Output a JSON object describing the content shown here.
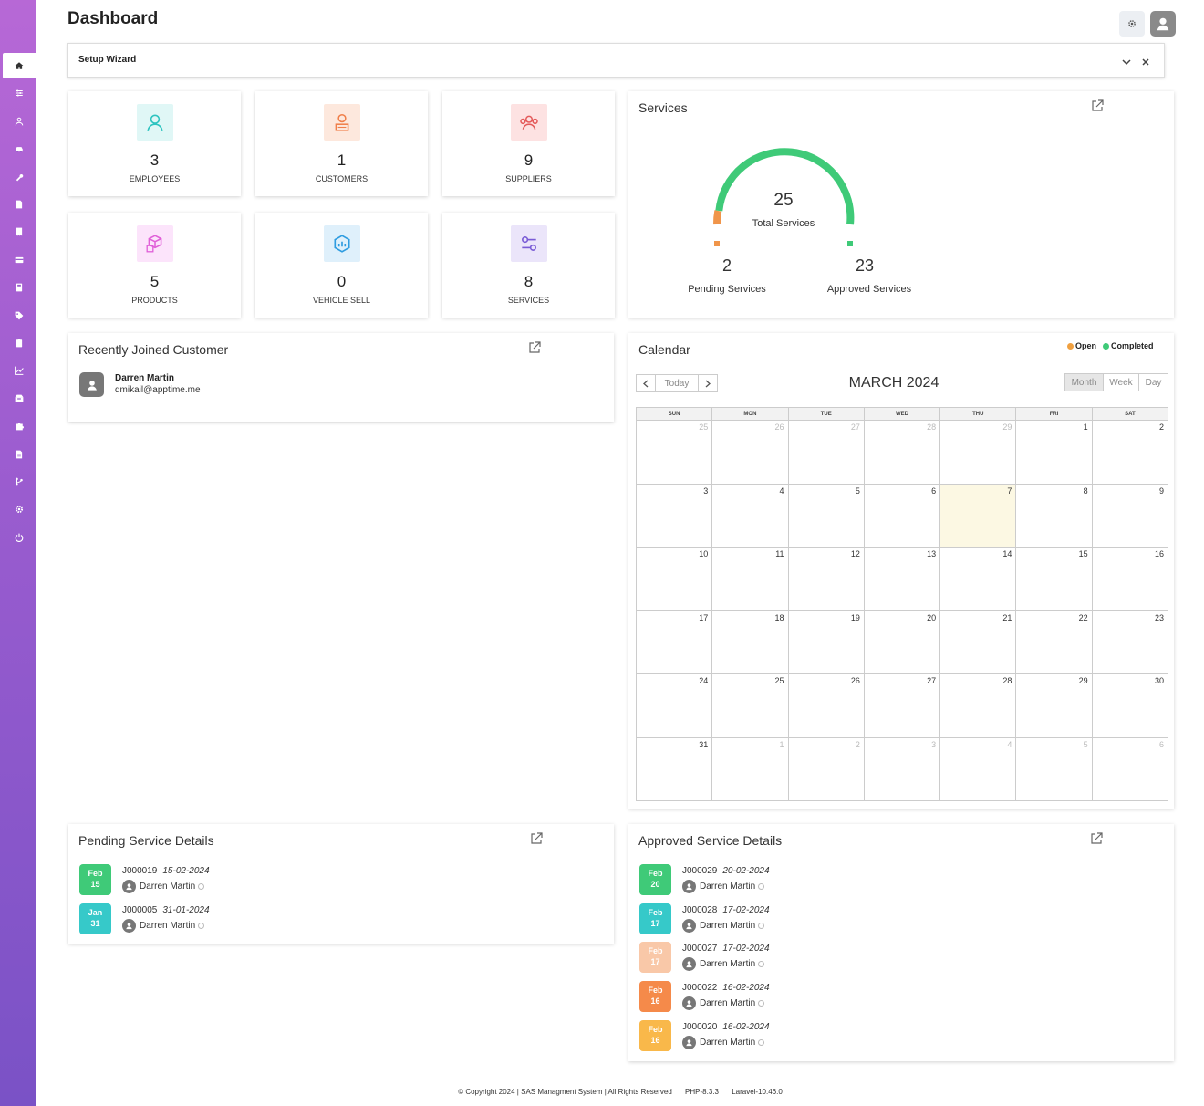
{
  "header": {
    "title": "Dashboard"
  },
  "sidebar": {
    "items": [
      {
        "icon": "home-icon"
      },
      {
        "icon": "sliders-icon"
      },
      {
        "icon": "user-icon"
      },
      {
        "icon": "car-icon"
      },
      {
        "icon": "wrench-icon"
      },
      {
        "icon": "document-icon"
      },
      {
        "icon": "receipt-icon"
      },
      {
        "icon": "card-icon"
      },
      {
        "icon": "calculator-icon"
      },
      {
        "icon": "tag-icon"
      },
      {
        "icon": "clipboard-icon"
      },
      {
        "icon": "chart-line-icon"
      },
      {
        "icon": "inbox-icon"
      },
      {
        "icon": "puzzle-icon"
      },
      {
        "icon": "file-icon"
      },
      {
        "icon": "branch-icon"
      },
      {
        "icon": "gear-icon"
      },
      {
        "icon": "power-icon"
      }
    ]
  },
  "wizard": {
    "title": "Setup Wizard"
  },
  "stats": [
    {
      "value": "3",
      "label": "EMPLOYEES",
      "color": "#2ec4c0",
      "bg": "#e0f7f6"
    },
    {
      "value": "1",
      "label": "CUSTOMERS",
      "color": "#f07f4a",
      "bg": "#fde8dd"
    },
    {
      "value": "9",
      "label": "SUPPLIERS",
      "color": "#e45a5a",
      "bg": "#fde2e2"
    },
    {
      "value": "5",
      "label": "PRODUCTS",
      "color": "#e060d8",
      "bg": "#fce4fb"
    },
    {
      "value": "0",
      "label": "VEHICLE SELL",
      "color": "#2e9ce0",
      "bg": "#dff0fb"
    },
    {
      "value": "8",
      "label": "SERVICES",
      "color": "#7a5cd6",
      "bg": "#ebe5fa"
    }
  ],
  "services": {
    "title": "Services",
    "total": "25",
    "total_label": "Total Services",
    "pending": "2",
    "pending_label": "Pending Services",
    "approved": "23",
    "approved_label": "Approved Services",
    "pending_color": "#f0954a",
    "approved_color": "#3fca78"
  },
  "recent_customer": {
    "title": "Recently Joined Customer",
    "name": "Darren Martin",
    "email": "dmikail@apptime.me"
  },
  "calendar": {
    "title": "Calendar",
    "legend_open": "Open",
    "legend_completed": "Completed",
    "open_color": "#f0a040",
    "completed_color": "#3fca78",
    "today_btn": "Today",
    "month_label": "MARCH 2024",
    "view_month": "Month",
    "view_week": "Week",
    "view_day": "Day",
    "days": [
      "SUN",
      "MON",
      "TUE",
      "WED",
      "THU",
      "FRI",
      "SAT"
    ],
    "weeks": [
      [
        "25",
        "26",
        "27",
        "28",
        "29",
        "1",
        "2"
      ],
      [
        "3",
        "4",
        "5",
        "6",
        "7",
        "8",
        "9"
      ],
      [
        "10",
        "11",
        "12",
        "13",
        "14",
        "15",
        "16"
      ],
      [
        "17",
        "18",
        "19",
        "20",
        "21",
        "22",
        "23"
      ],
      [
        "24",
        "25",
        "26",
        "27",
        "28",
        "29",
        "30"
      ],
      [
        "31",
        "1",
        "2",
        "3",
        "4",
        "5",
        "6"
      ]
    ],
    "today": "7"
  },
  "pending_details": {
    "title": "Pending Service Details",
    "items": [
      {
        "month": "Feb",
        "day": "15",
        "job": "J000019",
        "date": "15-02-2024",
        "user": "Darren Martin",
        "color": "#3fca78"
      },
      {
        "month": "Jan",
        "day": "31",
        "job": "J000005",
        "date": "31-01-2024",
        "user": "Darren Martin",
        "color": "#36c9c9"
      }
    ]
  },
  "approved_details": {
    "title": "Approved Service Details",
    "items": [
      {
        "month": "Feb",
        "day": "20",
        "job": "J000029",
        "date": "20-02-2024",
        "user": "Darren Martin",
        "color": "#3fca78"
      },
      {
        "month": "Feb",
        "day": "17",
        "job": "J000028",
        "date": "17-02-2024",
        "user": "Darren Martin",
        "color": "#36c9c9"
      },
      {
        "month": "Feb",
        "day": "17",
        "job": "J000027",
        "date": "17-02-2024",
        "user": "Darren Martin",
        "color": "#f9c8a8"
      },
      {
        "month": "Feb",
        "day": "16",
        "job": "J000022",
        "date": "16-02-2024",
        "user": "Darren Martin",
        "color": "#f58a4a"
      },
      {
        "month": "Feb",
        "day": "16",
        "job": "J000020",
        "date": "16-02-2024",
        "user": "Darren Martin",
        "color": "#f9b84a"
      }
    ]
  },
  "footer": {
    "copyright": "© Copyright 2024 | SAS Managment System | All Rights Reserved",
    "php": "PHP-8.3.3",
    "laravel": "Laravel-10.46.0"
  }
}
